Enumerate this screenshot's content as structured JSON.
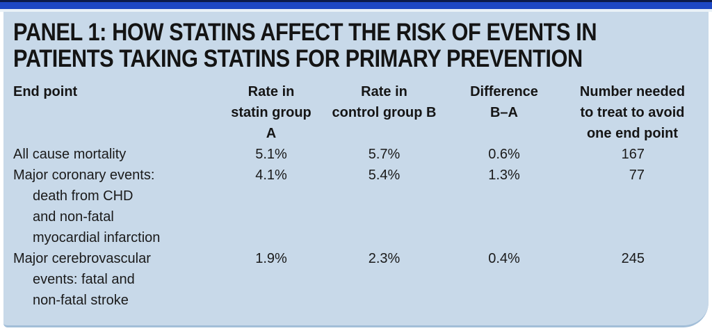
{
  "panel": {
    "label": "PANEL 1",
    "title_line1": "PANEL 1: HOW STATINS AFFECT THE RISK OF EVENTS IN",
    "title_line2": "PATIENTS TAKING STATINS FOR PRIMARY PREVENTION"
  },
  "table": {
    "columns": [
      {
        "label_lines": [
          "End point"
        ]
      },
      {
        "label_lines": [
          "Rate in",
          "statin group A"
        ]
      },
      {
        "label_lines": [
          "Rate in",
          "control group B"
        ]
      },
      {
        "label_lines": [
          "Difference",
          "B–A"
        ]
      },
      {
        "label_lines": [
          "Number needed",
          "to treat to avoid",
          "one end point"
        ]
      }
    ],
    "rows": [
      {
        "end_point_lines": [
          "All cause mortality"
        ],
        "rate_statin": "5.1%",
        "rate_control": "5.7%",
        "difference": "0.6%",
        "nnt": "167"
      },
      {
        "end_point_lines": [
          "Major coronary events:",
          "death from CHD",
          "and non-fatal",
          "myocardial infarction"
        ],
        "rate_statin": "4.1%",
        "rate_control": "5.4%",
        "difference": "1.3%",
        "nnt": "77"
      },
      {
        "end_point_lines": [
          "Major cerebrovascular",
          "events: fatal and",
          "non-fatal stroke"
        ],
        "rate_statin": "1.9%",
        "rate_control": "2.3%",
        "difference": "0.4%",
        "nnt": "245"
      }
    ]
  },
  "chart_data": {
    "type": "table",
    "title": "PANEL 1: HOW STATINS AFFECT THE RISK OF EVENTS IN PATIENTS TAKING STATINS FOR PRIMARY PREVENTION",
    "columns": [
      "End point",
      "Rate in statin group A",
      "Rate in control group B",
      "Difference B–A",
      "Number needed to treat to avoid one end point"
    ],
    "rows": [
      [
        "All cause mortality",
        "5.1%",
        "5.7%",
        "0.6%",
        "167"
      ],
      [
        "Major coronary events: death from CHD and non-fatal myocardial infarction",
        "4.1%",
        "5.4%",
        "1.3%",
        "77"
      ],
      [
        "Major cerebrovascular events: fatal and non-fatal stroke",
        "1.9%",
        "2.3%",
        "0.4%",
        "245"
      ]
    ]
  },
  "colors": {
    "top_bar_blue": "#1e48c4",
    "top_bar_navy_edge": "#0d1b4a",
    "panel_background": "#c8d9e9",
    "panel_bottom_edge": "#a2bed8",
    "text": "#1a1a1a"
  }
}
